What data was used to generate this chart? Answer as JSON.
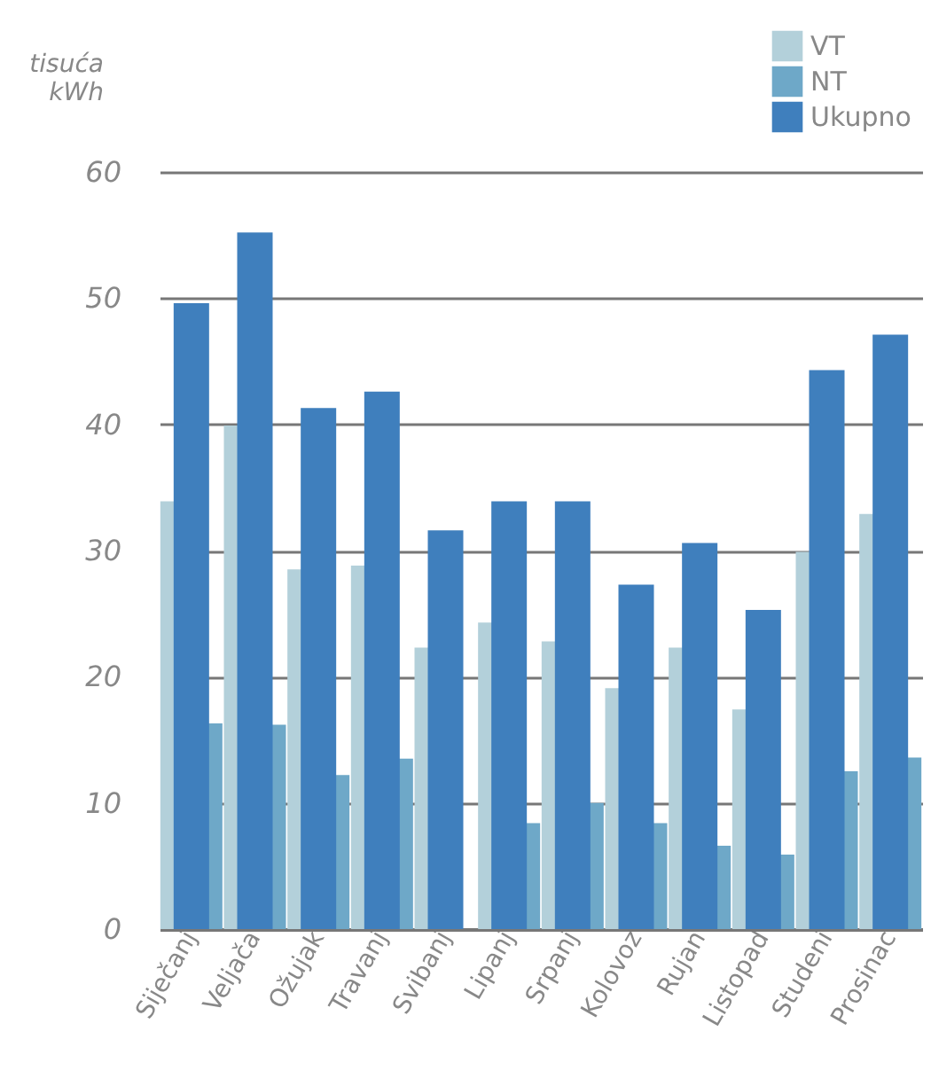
{
  "chart_data": {
    "type": "bar",
    "ylabel": "tisuća kWh",
    "categories": [
      "Siječanj",
      "Veljača",
      "Ožujak",
      "Travanj",
      "Svibanj",
      "Lipanj",
      "Srpanj",
      "Kolovoz",
      "Rujan",
      "Listopad",
      "Studeni",
      "Prosinac"
    ],
    "series": [
      {
        "name": "VT",
        "color": "#b3d0da",
        "values": [
          33.9,
          39.9,
          28.5,
          28.8,
          22.3,
          24.3,
          22.8,
          19.1,
          22.3,
          17.4,
          29.9,
          32.9
        ]
      },
      {
        "name": "NT",
        "color": "#6ea8c8",
        "values": [
          16.3,
          16.2,
          12.2,
          13.5,
          null,
          8.4,
          10.0,
          8.4,
          6.6,
          5.9,
          12.5,
          13.6
        ]
      },
      {
        "name": "Ukupno",
        "color": "#3f7fbd",
        "values": [
          49.6,
          55.2,
          41.3,
          42.6,
          31.6,
          33.9,
          33.9,
          27.3,
          30.6,
          25.3,
          44.3,
          47.1
        ]
      }
    ],
    "ylim": [
      0,
      60
    ],
    "yticks": [
      0,
      10,
      20,
      30,
      40,
      50,
      60
    ],
    "grid": "y",
    "legend": "top right"
  }
}
